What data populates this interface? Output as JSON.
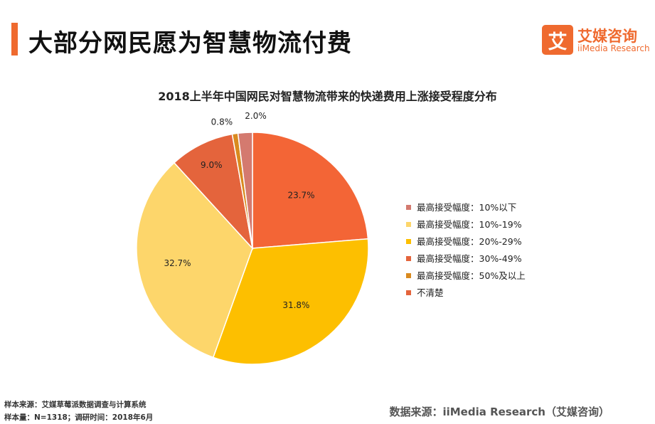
{
  "header": {
    "title": "大部分网民愿为智慧物流付费"
  },
  "logo": {
    "mark": "艾",
    "name_cn": "艾媒咨询",
    "name_en": "iiMedia Research"
  },
  "colors": {
    "accent": "#ef6a2f",
    "slices": [
      "#d47a6f",
      "#f5c158",
      "#fcd76c",
      "#e4643c",
      "#d98a1f",
      "#f36536"
    ]
  },
  "chart_data": {
    "type": "pie",
    "title": "2018上半年中国网民对智慧物流带来的快递费用上涨接受程度分布",
    "start": "12 o'clock, clockwise, beginning with 不清楚",
    "slices": [
      {
        "label": "不清楚",
        "value": 23.7,
        "display": "23.7%",
        "color": "#f36536"
      },
      {
        "label": "最高接受幅度：20%-29%",
        "value": 31.8,
        "display": "31.8%",
        "color": "#fdbf00"
      },
      {
        "label": "最高接受幅度：10%-19%",
        "value": 32.7,
        "display": "32.7%",
        "color": "#fdd66b"
      },
      {
        "label": "最高接受幅度：30%-49%",
        "value": 9.0,
        "display": "9.0%",
        "color": "#e4643c"
      },
      {
        "label": "最高接受幅度：50%及以上",
        "value": 0.8,
        "display": "0.8%",
        "color": "#d98a1f"
      },
      {
        "label": "最高接受幅度：10%以下",
        "value": 2.0,
        "display": "2.0%",
        "color": "#d47a6f"
      }
    ],
    "legend": [
      {
        "label": "最高接受幅度：10%以下",
        "color": "#d47a6f"
      },
      {
        "label": "最高接受幅度：10%-19%",
        "color": "#fdd66b"
      },
      {
        "label": "最高接受幅度：20%-29%",
        "color": "#fdbf00"
      },
      {
        "label": "最高接受幅度：30%-49%",
        "color": "#e4643c"
      },
      {
        "label": "最高接受幅度：50%及以上",
        "color": "#d98a1f"
      },
      {
        "label": "不清楚",
        "color": "#e4643c"
      }
    ],
    "legend_position": "right"
  },
  "footer": {
    "source_line": "样本来源：艾媒草莓派数据调查与计算系统",
    "sample_line": "样本量：N=1318；调研时间：2018年6月",
    "data_source": "数据来源：iiMedia Research（艾媒咨询）"
  }
}
